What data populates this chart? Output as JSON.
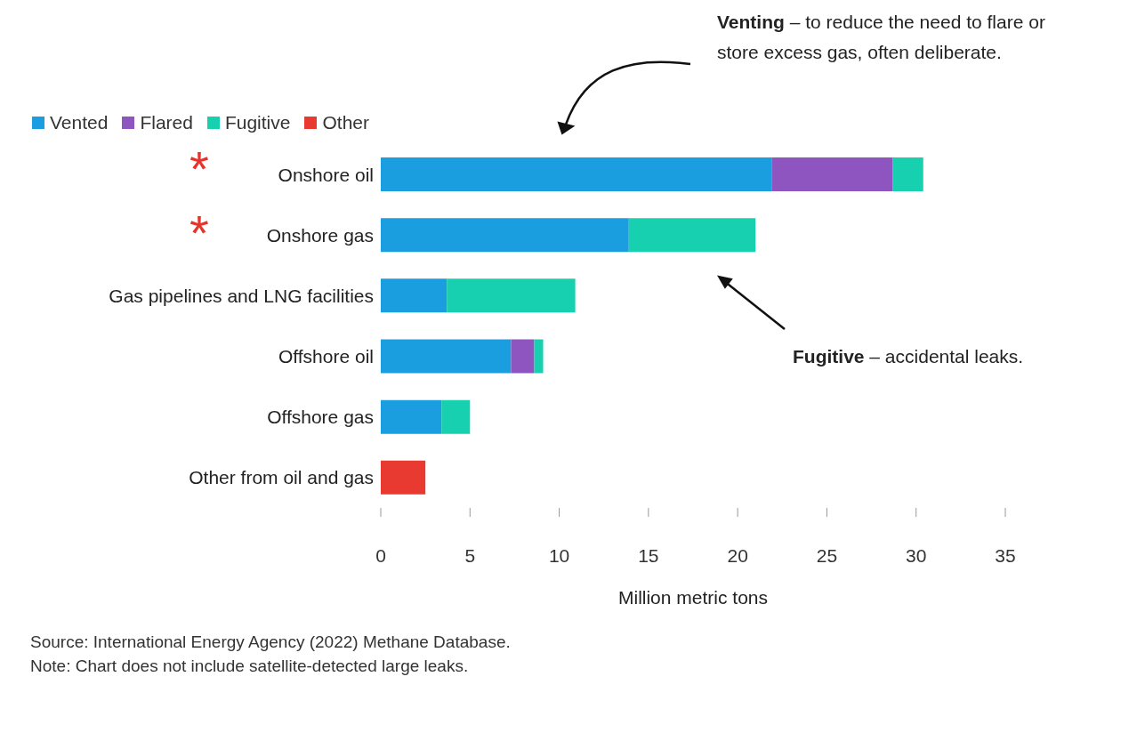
{
  "chart_data": {
    "type": "bar",
    "orientation": "horizontal",
    "stacked": true,
    "categories": [
      "Onshore oil",
      "Onshore gas",
      "Gas pipelines and LNG facilities",
      "Offshore oil",
      "Offshore gas",
      "Other from oil and gas"
    ],
    "series": [
      {
        "name": "Vented",
        "color": "#1a9ee0",
        "values": [
          21.9,
          13.9,
          3.7,
          7.3,
          3.4,
          null
        ]
      },
      {
        "name": "Flared",
        "color": "#8e55c0",
        "values": [
          6.8,
          null,
          null,
          1.3,
          null,
          null
        ]
      },
      {
        "name": "Fugitive",
        "color": "#17d0b0",
        "values": [
          1.7,
          7.1,
          7.2,
          0.5,
          1.6,
          null
        ]
      },
      {
        "name": "Other",
        "color": "#e83a30",
        "values": [
          null,
          null,
          null,
          null,
          null,
          2.5
        ]
      }
    ],
    "xlim": [
      0,
      35
    ],
    "xticks": [
      0,
      5,
      10,
      15,
      20,
      25,
      30,
      35
    ],
    "xlabel": "Million metric tons",
    "legend": "top left",
    "grid": false,
    "annotations": [
      "Venting – to reduce the need to flare or store excess gas,  often deliberate.",
      "Fugitive – accidental leaks.",
      "*",
      "*",
      "Source: International Energy Agency (2022) Methane Database.",
      "Note: Chart does not include satellite-detected large leaks."
    ]
  }
}
